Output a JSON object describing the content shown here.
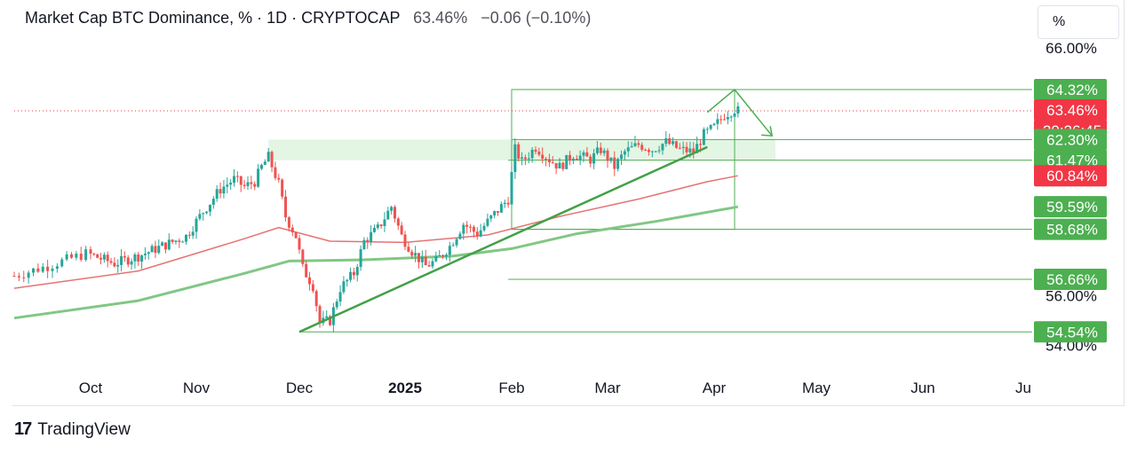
{
  "header": {
    "title": "Market Cap BTC Dominance, % · 1D · CRYPTOCAP",
    "last_value": "63.46%",
    "change": "−0.06 (−0.10%)"
  },
  "scale_button": "%",
  "footer": {
    "brand": "TradingView",
    "logo_glyph": "17"
  },
  "colors": {
    "up": "#26a69a",
    "down": "#ef5350",
    "green_label": "#4caf50",
    "red_label": "#f23645",
    "zone_fill": "#d9f2d9",
    "ma_fast": "#e57373",
    "ma_slow": "#81c784"
  },
  "chart_data": {
    "type": "candlestick",
    "title": "Market Cap BTC Dominance, %",
    "timeframe": "1D",
    "exchange": "CRYPTOCAP",
    "x_tick_labels": [
      "Oct",
      "Nov",
      "Dec",
      "2025",
      "Feb",
      "Mar",
      "Apr",
      "May",
      "Jun",
      "Ju"
    ],
    "y_axis_labels": [
      "66.00%",
      "56.00%",
      "54.00%"
    ],
    "ylim": [
      53.2,
      66.6
    ],
    "price_labels": [
      {
        "text": "64.32%",
        "value": 64.32,
        "kind": "level"
      },
      {
        "text": "63.46%",
        "value": 63.46,
        "kind": "last"
      },
      {
        "text": "20:26:45",
        "value": 63.46,
        "kind": "countdown"
      },
      {
        "text": "62.30%",
        "value": 62.3,
        "kind": "level"
      },
      {
        "text": "61.47%",
        "value": 61.47,
        "kind": "level"
      },
      {
        "text": "60.84%",
        "value": 60.84,
        "kind": "ma"
      },
      {
        "text": "59.59%",
        "value": 59.59,
        "kind": "ma"
      },
      {
        "text": "58.68%",
        "value": 58.68,
        "kind": "level"
      },
      {
        "text": "56.66%",
        "value": 56.66,
        "kind": "level"
      },
      {
        "text": "54.54%",
        "value": 54.54,
        "kind": "level"
      }
    ],
    "horizontal_levels": [
      64.32,
      62.3,
      61.47,
      58.68,
      56.66,
      54.54
    ],
    "last_price": 63.46,
    "moving_averages": [
      {
        "color": "red",
        "points": [
          [
            "2024-09-15",
            56.3
          ],
          [
            "2024-10-15",
            57.0
          ],
          [
            "2024-11-15",
            58.3
          ],
          [
            "2024-11-25",
            58.75
          ],
          [
            "2024-12-10",
            58.2
          ],
          [
            "2025-01-01",
            58.15
          ],
          [
            "2025-01-25",
            58.45
          ],
          [
            "2025-02-15",
            59.2
          ],
          [
            "2025-03-10",
            59.9
          ],
          [
            "2025-03-30",
            60.6
          ],
          [
            "2025-04-08",
            60.84
          ]
        ]
      },
      {
        "color": "green",
        "points": [
          [
            "2024-09-15",
            55.1
          ],
          [
            "2024-10-15",
            55.8
          ],
          [
            "2024-11-15",
            56.9
          ],
          [
            "2024-11-28",
            57.4
          ],
          [
            "2024-12-20",
            57.45
          ],
          [
            "2025-01-15",
            57.6
          ],
          [
            "2025-02-01",
            57.9
          ],
          [
            "2025-02-20",
            58.5
          ],
          [
            "2025-03-15",
            59.0
          ],
          [
            "2025-04-08",
            59.59
          ]
        ]
      }
    ],
    "trendline": [
      [
        "2024-12-01",
        54.54
      ],
      [
        "2025-03-30",
        62.0
      ]
    ],
    "projection": [
      [
        "2025-03-30",
        63.4
      ],
      [
        "2025-04-07",
        64.32
      ],
      [
        "2025-04-18",
        62.45
      ]
    ],
    "zones": [
      {
        "from": "2024-11-22",
        "to": "2025-04-19",
        "low": 61.47,
        "high": 62.3
      },
      {
        "from": "2025-02-01",
        "to": "2025-04-07",
        "low": 58.68,
        "high": 64.32
      }
    ],
    "close_path": [
      [
        "2024-09-15",
        56.8
      ],
      [
        "2024-09-22",
        57.2
      ],
      [
        "2024-09-30",
        57.7
      ],
      [
        "2024-10-08",
        57.3
      ],
      [
        "2024-10-15",
        57.6
      ],
      [
        "2024-10-22",
        58.0
      ],
      [
        "2024-10-29",
        58.4
      ],
      [
        "2024-11-03",
        59.4
      ],
      [
        "2024-11-08",
        60.3
      ],
      [
        "2024-11-12",
        60.7
      ],
      [
        "2024-11-15",
        60.4
      ],
      [
        "2024-11-18",
        60.6
      ],
      [
        "2024-11-20",
        61.2
      ],
      [
        "2024-11-22",
        61.6
      ],
      [
        "2024-11-25",
        60.5
      ],
      [
        "2024-11-27",
        59.2
      ],
      [
        "2024-11-30",
        58.4
      ],
      [
        "2024-12-02",
        57.1
      ],
      [
        "2024-12-05",
        56.4
      ],
      [
        "2024-12-07",
        54.9
      ],
      [
        "2024-12-10",
        55.0
      ],
      [
        "2024-12-13",
        56.3
      ],
      [
        "2024-12-17",
        56.9
      ],
      [
        "2024-12-20",
        58.2
      ],
      [
        "2024-12-24",
        58.7
      ],
      [
        "2024-12-28",
        59.6
      ],
      [
        "2024-12-31",
        58.4
      ],
      [
        "2025-01-03",
        57.8
      ],
      [
        "2025-01-07",
        57.2
      ],
      [
        "2025-01-10",
        57.4
      ],
      [
        "2025-01-14",
        58.0
      ],
      [
        "2025-01-18",
        58.9
      ],
      [
        "2025-01-22",
        58.5
      ],
      [
        "2025-01-27",
        59.3
      ],
      [
        "2025-01-31",
        59.9
      ],
      [
        "2025-02-02",
        61.9
      ],
      [
        "2025-02-04",
        61.4
      ],
      [
        "2025-02-08",
        62.0
      ],
      [
        "2025-02-12",
        61.5
      ],
      [
        "2025-02-15",
        61.2
      ],
      [
        "2025-02-19",
        61.7
      ],
      [
        "2025-02-24",
        61.5
      ],
      [
        "2025-02-27",
        61.9
      ],
      [
        "2025-03-03",
        61.2
      ],
      [
        "2025-03-06",
        61.8
      ],
      [
        "2025-03-10",
        62.1
      ],
      [
        "2025-03-14",
        61.9
      ],
      [
        "2025-03-18",
        62.2
      ],
      [
        "2025-03-22",
        61.9
      ],
      [
        "2025-03-26",
        61.8
      ],
      [
        "2025-03-29",
        62.5
      ],
      [
        "2025-04-01",
        62.8
      ],
      [
        "2025-04-04",
        63.3
      ],
      [
        "2025-04-07",
        63.52
      ],
      [
        "2025-04-08",
        63.46
      ]
    ]
  }
}
